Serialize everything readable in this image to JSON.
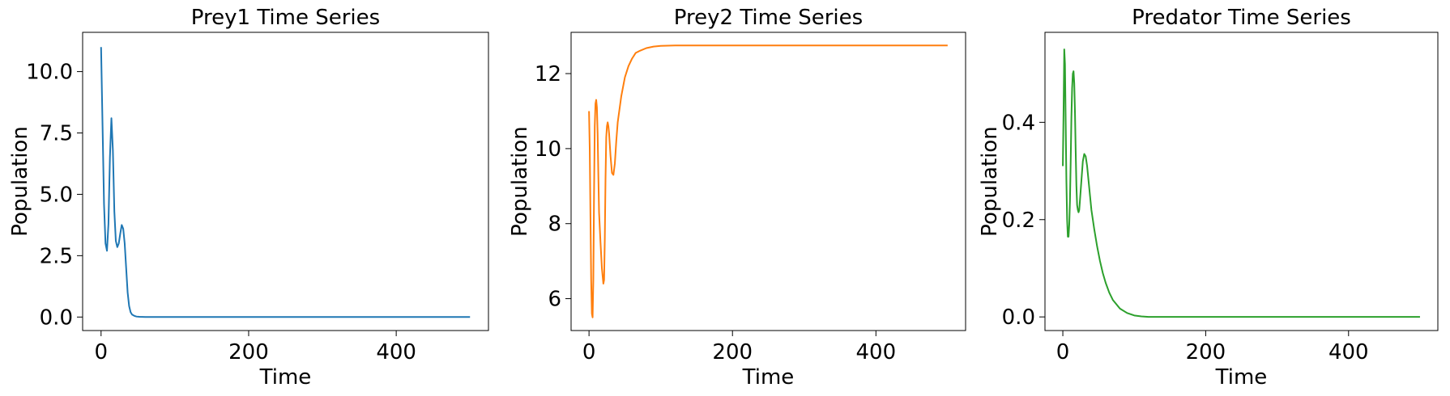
{
  "chart_data": [
    {
      "type": "line",
      "title": "Prey1 Time Series",
      "xlabel": "Time",
      "ylabel": "Population",
      "color": "#1f77b4",
      "xlim": [
        -25,
        525
      ],
      "ylim": [
        -0.55,
        11.6
      ],
      "xticks": [
        0,
        200,
        400
      ],
      "xtick_labels": [
        "0",
        "200",
        "400"
      ],
      "yticks": [
        0,
        2.5,
        5,
        7.5,
        10
      ],
      "ytick_labels": [
        "0.0",
        "2.5",
        "5.0",
        "7.5",
        "10.0"
      ],
      "grid": false,
      "x": [
        0,
        2,
        4,
        6,
        8,
        10,
        12,
        14,
        16,
        18,
        20,
        22,
        24,
        26,
        28,
        30,
        32,
        34,
        36,
        38,
        40,
        42,
        45,
        48,
        52,
        56,
        60,
        80,
        100,
        150,
        200,
        250,
        300,
        350,
        400,
        450,
        500
      ],
      "y": [
        11.0,
        7.8,
        4.6,
        3.0,
        2.7,
        3.8,
        6.5,
        8.1,
        6.8,
        4.3,
        3.1,
        2.85,
        3.0,
        3.4,
        3.75,
        3.6,
        3.0,
        2.0,
        1.0,
        0.45,
        0.2,
        0.1,
        0.05,
        0.02,
        0.01,
        0.005,
        0.0,
        0.0,
        0.0,
        0.0,
        0.0,
        0.0,
        0.0,
        0.0,
        0.0,
        0.0,
        0.0
      ]
    },
    {
      "type": "line",
      "title": "Prey2 Time Series",
      "xlabel": "Time",
      "ylabel": "Population",
      "color": "#ff7f0e",
      "xlim": [
        -25,
        525
      ],
      "ylim": [
        5.15,
        13.1
      ],
      "xticks": [
        0,
        200,
        400
      ],
      "xtick_labels": [
        "0",
        "200",
        "400"
      ],
      "yticks": [
        6,
        8,
        10,
        12
      ],
      "ytick_labels": [
        "6",
        "8",
        "10",
        "12"
      ],
      "grid": false,
      "x": [
        0,
        1,
        2,
        3,
        4,
        5,
        6,
        7,
        8,
        9,
        10,
        11,
        12,
        13,
        14,
        16,
        18,
        20,
        21,
        22,
        23,
        24,
        25,
        26,
        27,
        28,
        30,
        32,
        34,
        36,
        38,
        40,
        45,
        50,
        55,
        60,
        65,
        70,
        80,
        90,
        100,
        120,
        150,
        200,
        300,
        400,
        500
      ],
      "y": [
        11.0,
        10.0,
        8.2,
        6.5,
        5.6,
        5.5,
        6.5,
        8.8,
        10.6,
        11.2,
        11.3,
        11.1,
        10.4,
        9.3,
        8.3,
        7.5,
        6.8,
        6.4,
        6.5,
        7.6,
        9.2,
        10.3,
        10.6,
        10.7,
        10.6,
        10.4,
        9.8,
        9.35,
        9.3,
        9.6,
        10.2,
        10.7,
        11.4,
        11.9,
        12.2,
        12.4,
        12.55,
        12.6,
        12.68,
        12.72,
        12.74,
        12.75,
        12.75,
        12.75,
        12.75,
        12.75,
        12.75
      ]
    },
    {
      "type": "line",
      "title": "Predator Time Series",
      "xlabel": "Time",
      "ylabel": "Population",
      "color": "#2ca02c",
      "xlim": [
        -25,
        525
      ],
      "ylim": [
        -0.028,
        0.585
      ],
      "xticks": [
        0,
        200,
        400
      ],
      "xtick_labels": [
        "0",
        "200",
        "400"
      ],
      "yticks": [
        0,
        0.2,
        0.4
      ],
      "ytick_labels": [
        "0.0",
        "0.2",
        "0.4"
      ],
      "grid": false,
      "x": [
        0,
        1,
        2,
        3,
        4,
        5,
        6,
        7,
        8,
        9,
        10,
        11,
        12,
        13,
        14,
        15,
        16,
        17,
        18,
        19,
        20,
        21,
        22,
        23,
        24,
        26,
        28,
        30,
        32,
        34,
        36,
        38,
        40,
        44,
        48,
        52,
        56,
        60,
        65,
        70,
        80,
        90,
        100,
        110,
        120,
        150,
        200,
        300,
        400,
        500
      ],
      "y": [
        0.31,
        0.42,
        0.55,
        0.52,
        0.4,
        0.28,
        0.2,
        0.165,
        0.165,
        0.19,
        0.24,
        0.32,
        0.41,
        0.47,
        0.5,
        0.505,
        0.48,
        0.42,
        0.34,
        0.27,
        0.23,
        0.22,
        0.215,
        0.22,
        0.24,
        0.28,
        0.32,
        0.335,
        0.33,
        0.31,
        0.28,
        0.25,
        0.22,
        0.18,
        0.145,
        0.115,
        0.09,
        0.07,
        0.05,
        0.035,
        0.017,
        0.008,
        0.003,
        0.001,
        0.0,
        0.0,
        0.0,
        0.0,
        0.0,
        0.0
      ]
    }
  ]
}
